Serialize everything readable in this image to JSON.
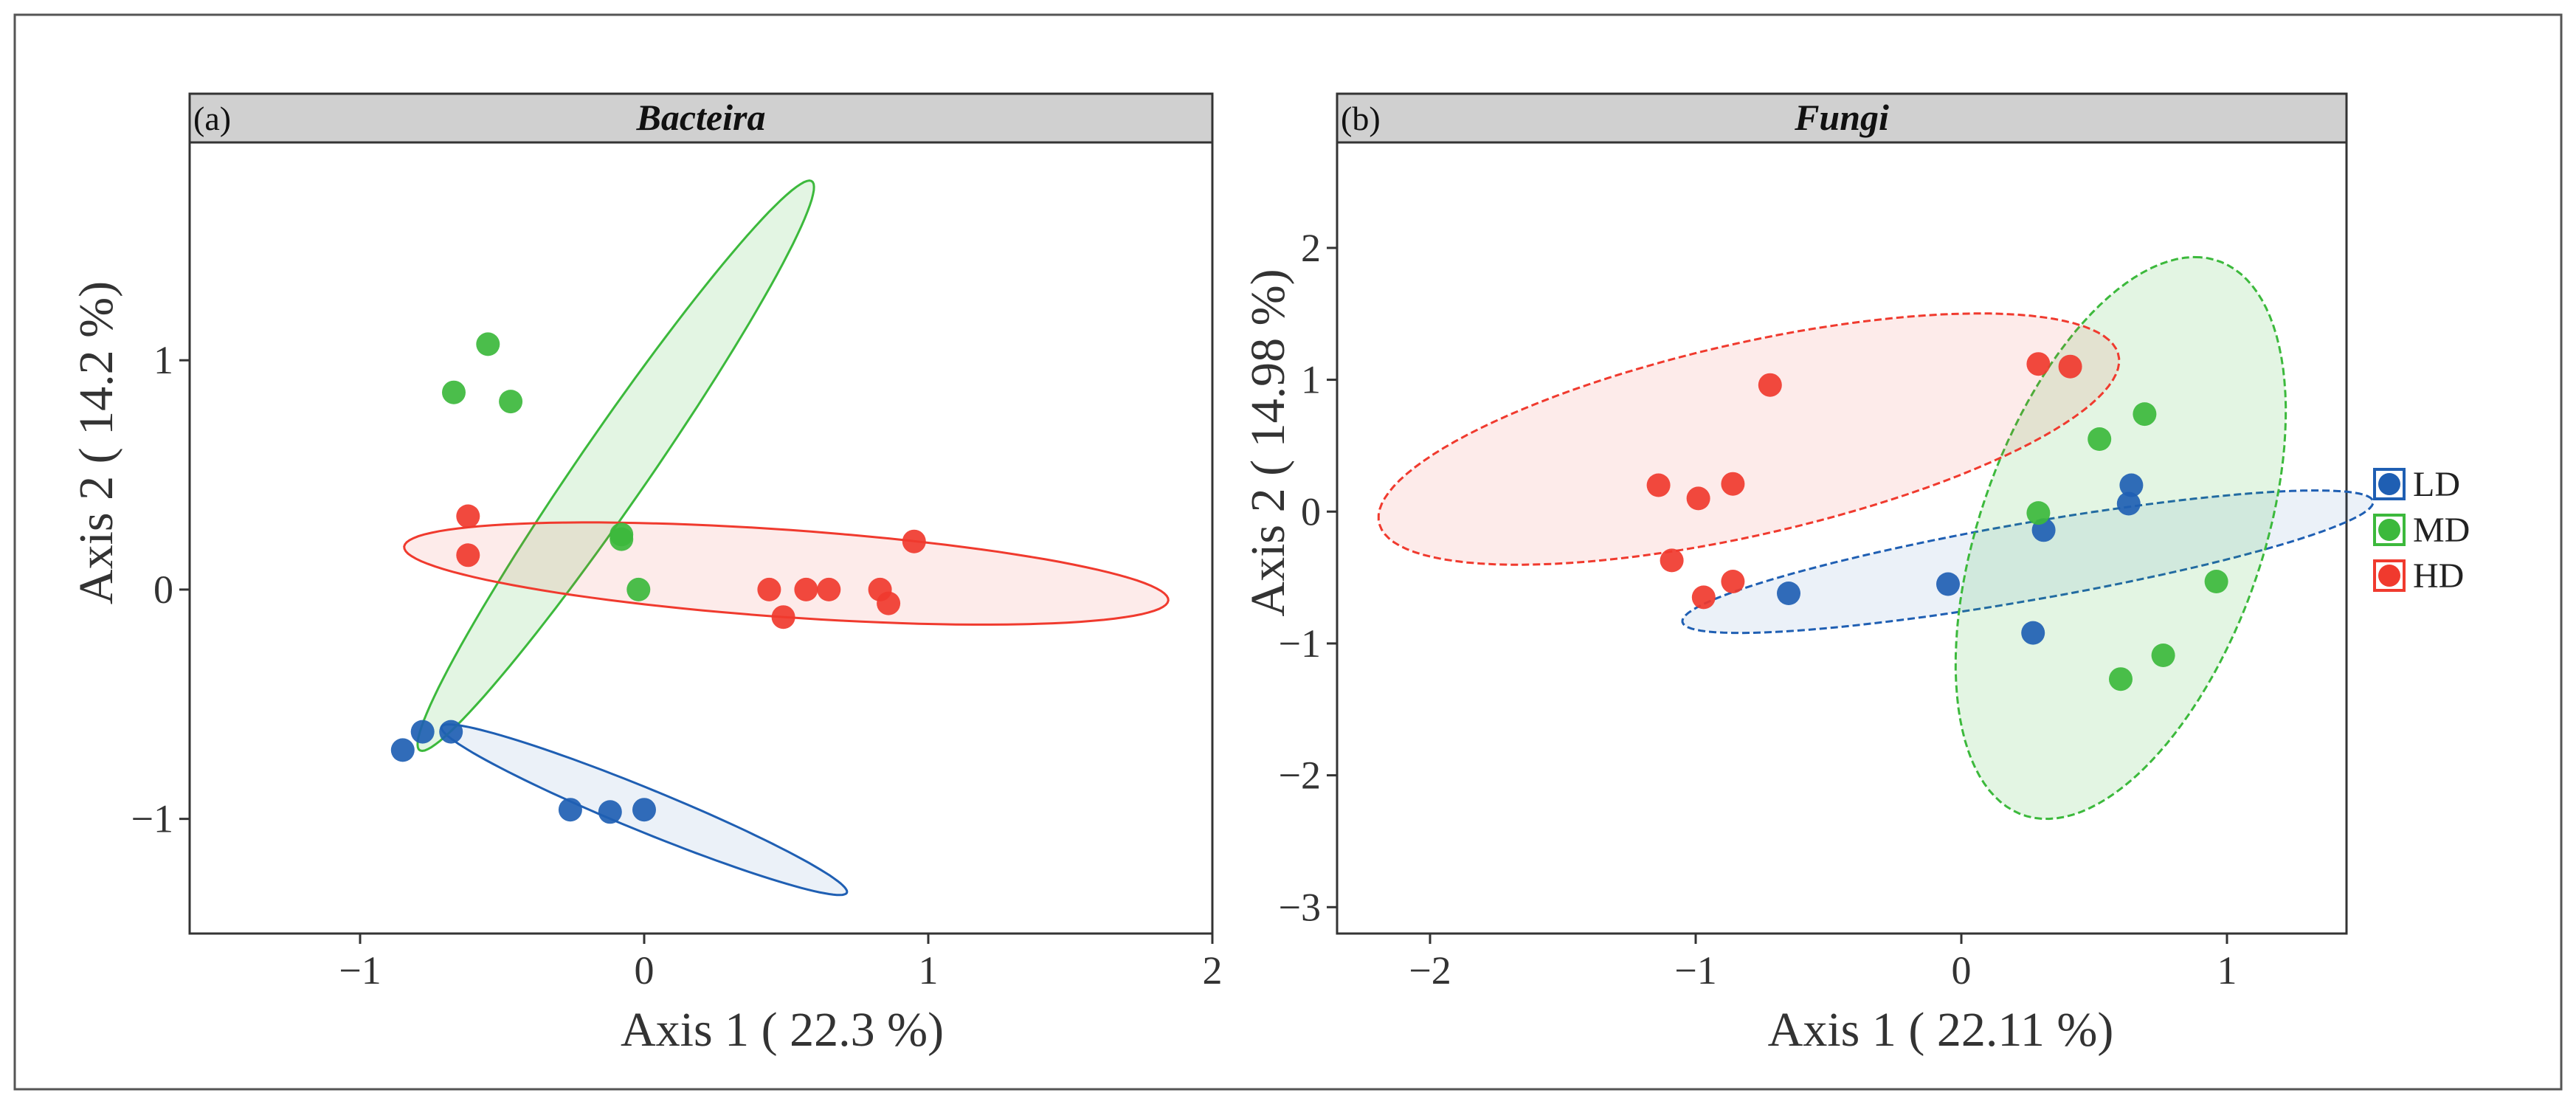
{
  "colors": {
    "LD": "#1f5fb3",
    "MD": "#3cb93c",
    "HD": "#f03a2e"
  },
  "legend": {
    "items": [
      {
        "key": "LD",
        "label": "LD"
      },
      {
        "key": "MD",
        "label": "MD"
      },
      {
        "key": "HD",
        "label": "HD"
      }
    ]
  },
  "chart_data": [
    {
      "type": "scatter",
      "panel_label": "(a)",
      "title": "Bacteira",
      "xlabel": "Axis 1 ( 22.3 %)",
      "ylabel": "Axis 2 ( 14.2 %)",
      "xlim": [
        -1.6,
        2.0
      ],
      "ylim": [
        -1.5,
        1.95
      ],
      "xticks": [
        -1,
        0,
        1,
        2
      ],
      "yticks": [
        -1,
        0,
        1
      ],
      "series": [
        {
          "name": "LD",
          "points": [
            [
              -0.85,
              -0.7
            ],
            [
              -0.78,
              -0.62
            ],
            [
              -0.68,
              -0.62
            ],
            [
              -0.26,
              -0.96
            ],
            [
              -0.12,
              -0.97
            ],
            [
              0.0,
              -0.96
            ]
          ]
        },
        {
          "name": "MD",
          "points": [
            [
              -0.55,
              1.07
            ],
            [
              -0.67,
              0.86
            ],
            [
              -0.47,
              0.82
            ],
            [
              -0.08,
              0.24
            ],
            [
              -0.08,
              0.22
            ],
            [
              -0.02,
              0.0
            ]
          ]
        },
        {
          "name": "HD",
          "points": [
            [
              -0.62,
              0.32
            ],
            [
              -0.62,
              0.15
            ],
            [
              0.95,
              0.21
            ],
            [
              0.44,
              0.0
            ],
            [
              0.49,
              -0.12
            ],
            [
              0.57,
              0.0
            ],
            [
              0.65,
              0.0
            ],
            [
              0.83,
              0.0
            ],
            [
              0.86,
              -0.06
            ]
          ]
        }
      ],
      "ellipses": [
        {
          "group": "LD",
          "cx": 0.0,
          "cy": -0.96,
          "a": 0.8,
          "b": 0.09,
          "angle": -27
        },
        {
          "group": "MD",
          "cx": -0.1,
          "cy": 0.54,
          "a": 1.42,
          "b": 0.13,
          "angle": 61
        },
        {
          "group": "HD",
          "cx": 0.5,
          "cy": 0.07,
          "a": 1.35,
          "b": 0.19,
          "angle": -5
        }
      ]
    },
    {
      "type": "scatter",
      "panel_label": "(b)",
      "title": "Fungi",
      "xlabel": "Axis 1 ( 22.11 %)",
      "ylabel": "Axis 2 ( 14.98 %)",
      "xlim": [
        -2.35,
        1.45
      ],
      "ylim": [
        -3.2,
        2.8
      ],
      "xticks": [
        -2,
        -1,
        0,
        1
      ],
      "yticks": [
        -3,
        -2,
        -1,
        0,
        1,
        2
      ],
      "series": [
        {
          "name": "LD",
          "points": [
            [
              -0.65,
              -0.62
            ],
            [
              -0.05,
              -0.55
            ],
            [
              0.27,
              -0.92
            ],
            [
              0.31,
              -0.14
            ],
            [
              0.63,
              0.06
            ],
            [
              0.64,
              0.2
            ]
          ]
        },
        {
          "name": "MD",
          "points": [
            [
              0.29,
              -0.01
            ],
            [
              0.52,
              0.55
            ],
            [
              0.69,
              0.74
            ],
            [
              0.96,
              -0.53
            ],
            [
              0.6,
              -1.27
            ],
            [
              0.76,
              -1.09
            ]
          ]
        },
        {
          "name": "HD",
          "points": [
            [
              -1.14,
              0.2
            ],
            [
              -0.99,
              0.1
            ],
            [
              -0.86,
              0.21
            ],
            [
              -1.09,
              -0.37
            ],
            [
              -0.97,
              -0.65
            ],
            [
              -0.86,
              -0.53
            ],
            [
              -0.72,
              0.96
            ],
            [
              0.29,
              1.12
            ],
            [
              0.41,
              1.1
            ]
          ]
        }
      ],
      "ellipses": [
        {
          "group": "LD",
          "cx": 0.25,
          "cy": -0.38,
          "a": 1.38,
          "b": 0.28,
          "angle": 20
        },
        {
          "group": "MD",
          "cx": 0.6,
          "cy": -0.2,
          "a": 2.15,
          "b": 0.55,
          "angle": 82
        },
        {
          "group": "HD",
          "cx": -0.8,
          "cy": 0.55,
          "a": 1.55,
          "b": 0.67,
          "angle": 29
        }
      ]
    }
  ]
}
